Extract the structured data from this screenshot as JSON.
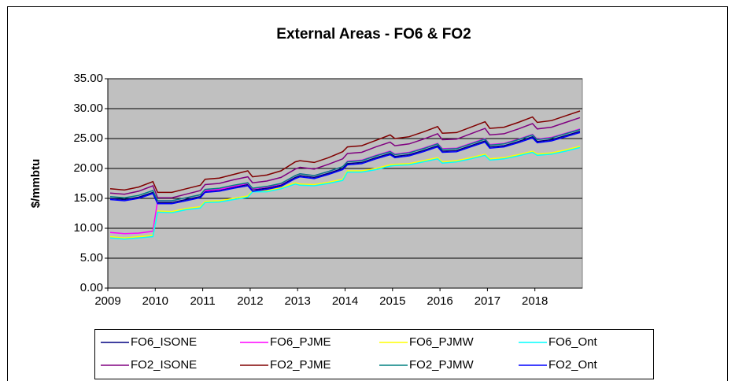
{
  "chart_data": {
    "type": "line",
    "title": "External Areas - FO6 & FO2",
    "y_label": "$/mmbtu",
    "x": [
      2009.05,
      2009.35,
      2009.65,
      2009.95,
      2010.05,
      2010.35,
      2010.65,
      2010.95,
      2011.05,
      2011.35,
      2011.65,
      2011.95,
      2012.05,
      2012.35,
      2012.65,
      2012.95,
      2013.05,
      2013.35,
      2013.65,
      2013.95,
      2014.05,
      2014.35,
      2014.65,
      2014.95,
      2015.05,
      2015.35,
      2015.65,
      2015.95,
      2016.05,
      2016.35,
      2016.65,
      2016.95,
      2017.05,
      2017.35,
      2017.65,
      2017.95,
      2018.05,
      2018.35,
      2018.65,
      2018.95
    ],
    "xlim": [
      2009,
      2019
    ],
    "xticks": [
      2009,
      2010,
      2011,
      2012,
      2013,
      2014,
      2015,
      2016,
      2017,
      2018
    ],
    "ylim": [
      0,
      35
    ],
    "yticks": [
      {
        "value": 0,
        "label": "0.00"
      },
      {
        "value": 5,
        "label": "5.00"
      },
      {
        "value": 10,
        "label": "10.00"
      },
      {
        "value": 15,
        "label": "15.00"
      },
      {
        "value": 20,
        "label": "20.00"
      },
      {
        "value": 25,
        "label": "25.00"
      },
      {
        "value": 30,
        "label": "30.00"
      },
      {
        "value": 35,
        "label": "35.00"
      }
    ],
    "grid": true,
    "series": [
      {
        "name": "FO6_ISONE",
        "color": "#000080",
        "values": [
          15.0,
          14.8,
          15.2,
          16.0,
          14.3,
          14.3,
          14.8,
          15.3,
          16.2,
          16.4,
          16.9,
          17.3,
          16.4,
          16.7,
          17.2,
          18.5,
          18.8,
          18.5,
          19.2,
          20.0,
          20.8,
          21.0,
          21.8,
          22.5,
          22.0,
          22.3,
          23.0,
          23.8,
          22.9,
          23.0,
          23.8,
          24.6,
          23.6,
          23.8,
          24.5,
          25.3,
          24.5,
          24.8,
          25.5,
          26.2
        ]
      },
      {
        "name": "FO6_PJME",
        "color": "#ff00ff",
        "values": [
          9.3,
          9.1,
          9.2,
          9.5,
          14.6,
          14.6,
          15.1,
          15.6,
          16.3,
          16.5,
          17.0,
          17.5,
          16.6,
          16.9,
          17.4,
          18.8,
          19.1,
          18.8,
          19.5,
          20.3,
          21.2,
          21.4,
          22.2,
          22.9,
          22.4,
          22.7,
          23.4,
          24.2,
          23.3,
          23.4,
          24.2,
          25.0,
          24.0,
          24.2,
          24.9,
          25.7,
          24.9,
          25.2,
          25.9,
          26.6
        ]
      },
      {
        "name": "FO6_PJMW",
        "color": "#ffff00",
        "values": [
          8.6,
          8.4,
          8.6,
          8.8,
          12.9,
          12.8,
          13.3,
          13.6,
          14.5,
          14.6,
          15.0,
          15.4,
          16.3,
          16.3,
          16.8,
          17.6,
          17.4,
          17.3,
          17.7,
          18.2,
          19.6,
          19.6,
          20.0,
          20.6,
          20.7,
          20.8,
          21.3,
          21.8,
          21.1,
          21.3,
          21.8,
          22.4,
          21.6,
          21.8,
          22.3,
          22.9,
          22.4,
          22.6,
          23.1,
          23.7
        ]
      },
      {
        "name": "FO6_Ont",
        "color": "#00ffff",
        "values": [
          8.4,
          8.2,
          8.4,
          8.6,
          12.7,
          12.6,
          13.1,
          13.4,
          14.3,
          14.4,
          14.8,
          15.2,
          16.1,
          16.1,
          16.6,
          17.4,
          17.2,
          17.1,
          17.5,
          18.0,
          19.4,
          19.4,
          19.8,
          20.4,
          20.5,
          20.6,
          21.1,
          21.6,
          20.9,
          21.1,
          21.6,
          22.2,
          21.4,
          21.6,
          22.1,
          22.7,
          22.2,
          22.4,
          22.9,
          23.5
        ]
      },
      {
        "name": "FO2_ISONE",
        "color": "#800080",
        "values": [
          15.9,
          15.7,
          16.2,
          17.1,
          15.1,
          15.1,
          15.7,
          16.3,
          17.3,
          17.5,
          18.1,
          18.6,
          17.6,
          17.9,
          18.5,
          19.9,
          20.2,
          19.9,
          20.7,
          21.6,
          22.5,
          22.7,
          23.6,
          24.4,
          23.8,
          24.1,
          24.9,
          25.8,
          24.8,
          24.9,
          25.8,
          26.7,
          25.6,
          25.8,
          26.6,
          27.5,
          26.6,
          26.9,
          27.7,
          28.5
        ]
      },
      {
        "name": "FO2_PJME",
        "color": "#800000",
        "values": [
          16.6,
          16.4,
          16.9,
          17.8,
          16.0,
          16.0,
          16.6,
          17.2,
          18.2,
          18.4,
          19.0,
          19.6,
          18.6,
          18.9,
          19.6,
          21.1,
          21.3,
          21.0,
          21.8,
          22.8,
          23.6,
          23.8,
          24.7,
          25.6,
          25.0,
          25.3,
          26.1,
          27.0,
          25.9,
          26.0,
          26.9,
          27.8,
          26.7,
          26.9,
          27.7,
          28.6,
          27.7,
          28.0,
          28.8,
          29.6
        ]
      },
      {
        "name": "FO2_PJMW",
        "color": "#008080",
        "values": [
          15.3,
          15.1,
          15.5,
          16.3,
          14.6,
          14.6,
          15.1,
          15.6,
          16.5,
          16.7,
          17.2,
          17.6,
          16.7,
          17.0,
          17.5,
          18.8,
          19.1,
          18.8,
          19.5,
          20.3,
          21.1,
          21.3,
          22.1,
          22.8,
          22.3,
          22.6,
          23.3,
          24.1,
          23.2,
          23.3,
          24.1,
          24.9,
          23.9,
          24.1,
          24.8,
          25.6,
          24.8,
          25.1,
          25.8,
          26.5
        ]
      },
      {
        "name": "FO2_Ont",
        "color": "#0000ff",
        "values": [
          14.8,
          14.6,
          15.0,
          15.8,
          14.1,
          14.1,
          14.6,
          15.1,
          16.0,
          16.2,
          16.7,
          17.1,
          16.2,
          16.5,
          17.0,
          18.3,
          18.6,
          18.3,
          19.0,
          19.8,
          20.6,
          20.8,
          21.6,
          22.3,
          21.8,
          22.1,
          22.8,
          23.6,
          22.7,
          22.8,
          23.6,
          24.4,
          23.4,
          23.6,
          24.3,
          25.1,
          24.3,
          24.6,
          25.3,
          26.0
        ]
      }
    ]
  }
}
